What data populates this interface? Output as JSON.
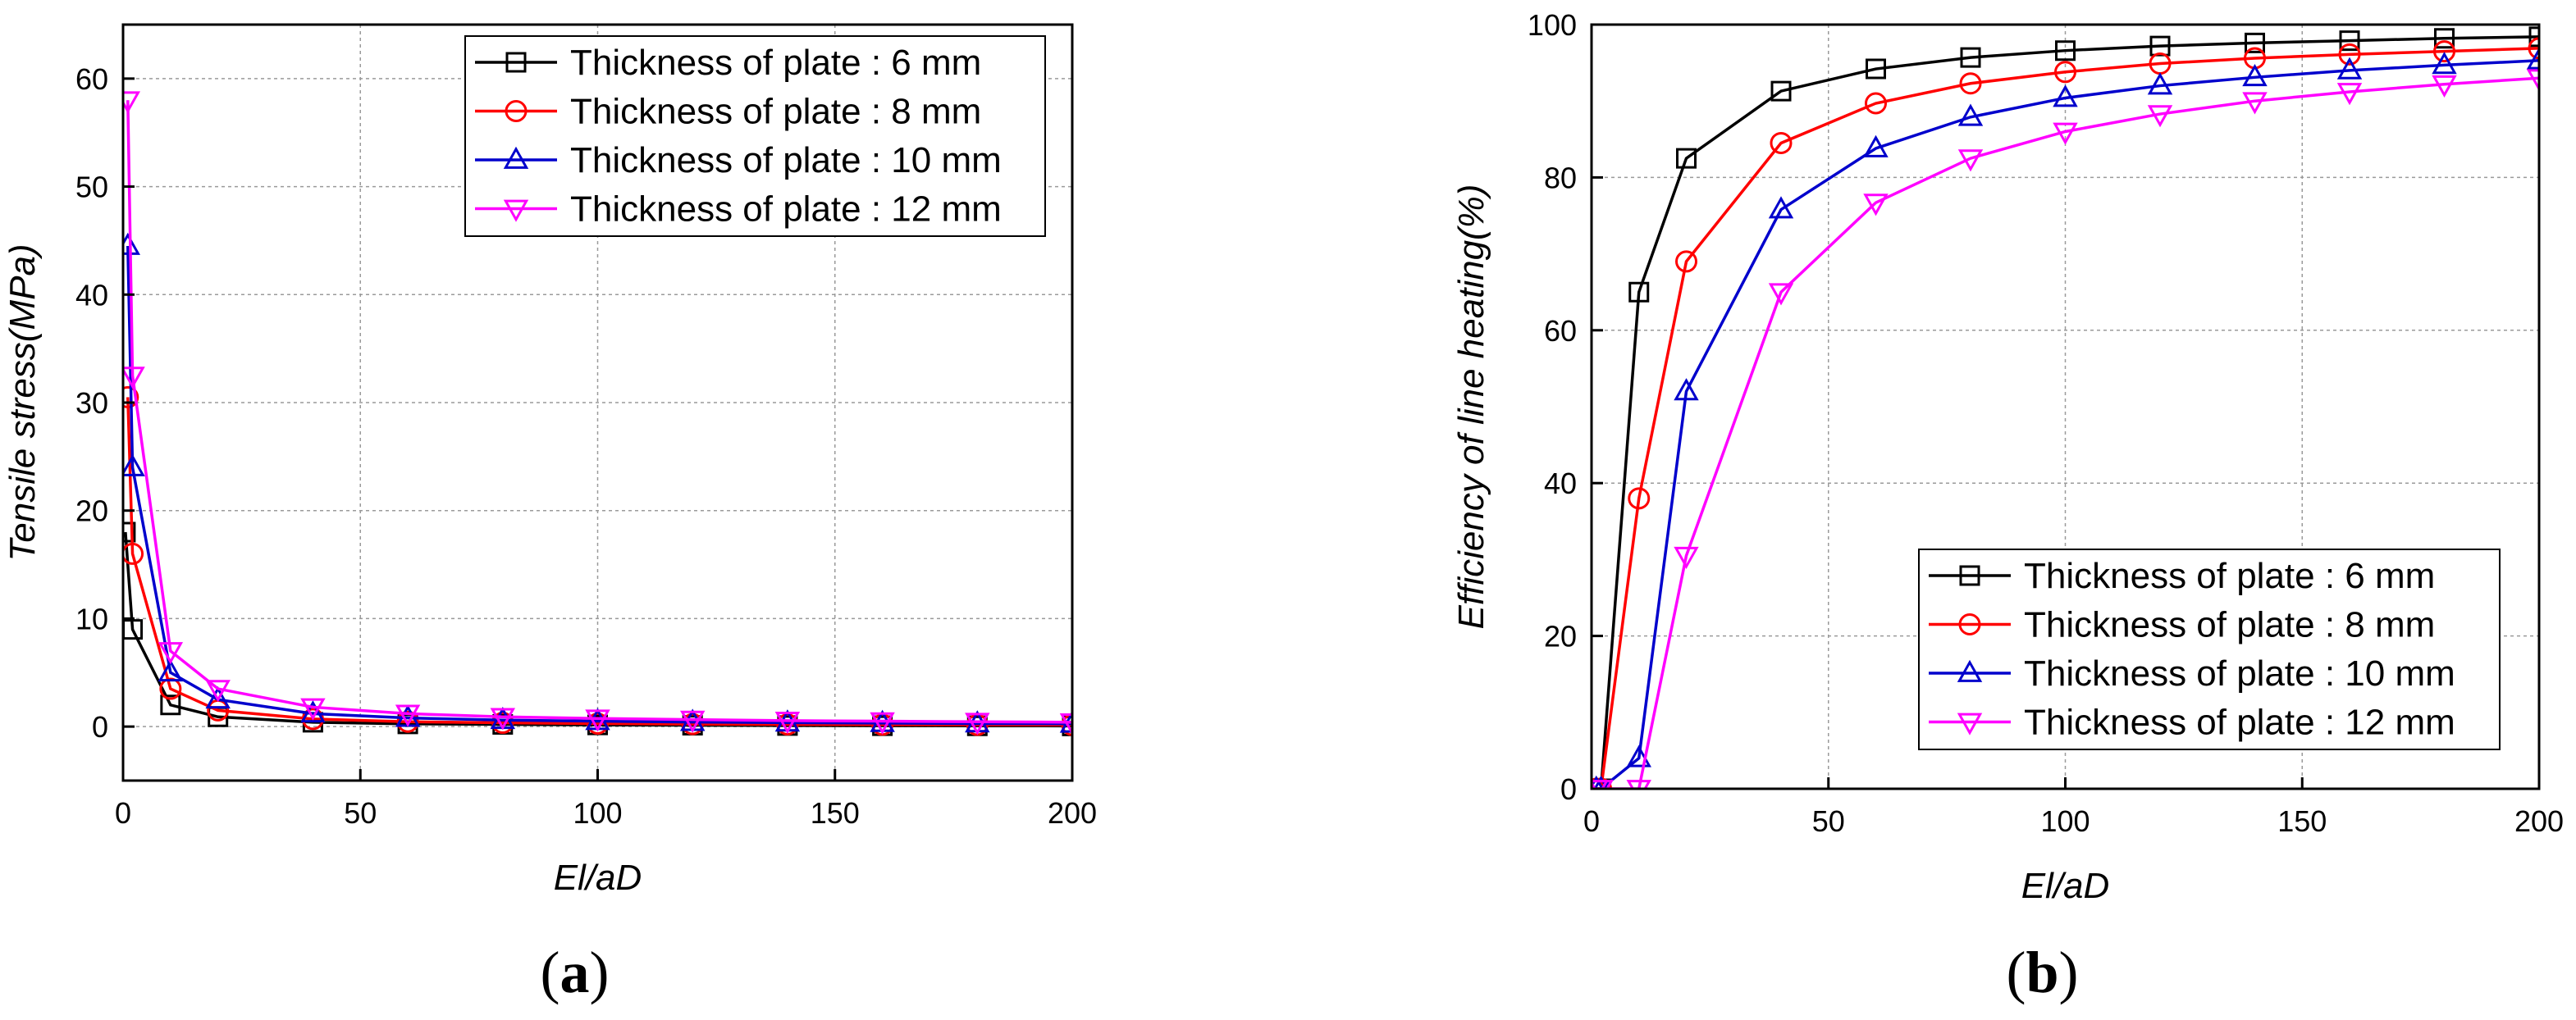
{
  "chart_data": [
    {
      "type": "line",
      "panel_label": "a",
      "title": "",
      "xlabel": "El/aD",
      "ylabel": "Tensile stress(MPa)",
      "xlim": [
        0,
        200
      ],
      "ylim": [
        -5,
        65
      ],
      "xticks": [
        0,
        50,
        100,
        150,
        200
      ],
      "yticks": [
        0,
        10,
        20,
        30,
        40,
        50,
        60
      ],
      "grid": true,
      "legend_position": "top-right",
      "series": [
        {
          "name": "Thickness of plate : 6 mm",
          "color": "#000000",
          "marker": "square",
          "x": [
            0.5,
            2,
            10,
            20,
            40,
            60,
            80,
            100,
            120,
            140,
            160,
            180,
            200
          ],
          "y": [
            18,
            9,
            2,
            0.9,
            0.4,
            0.25,
            0.2,
            0.15,
            0.12,
            0.1,
            0.08,
            0.07,
            0.06
          ]
        },
        {
          "name": "Thickness of plate : 8 mm",
          "color": "#ff0000",
          "marker": "circle",
          "x": [
            1,
            2,
            10,
            20,
            40,
            60,
            80,
            100,
            120,
            140,
            160,
            180,
            200
          ],
          "y": [
            30.5,
            16,
            3.5,
            1.5,
            0.7,
            0.45,
            0.35,
            0.28,
            0.23,
            0.2,
            0.18,
            0.16,
            0.15
          ]
        },
        {
          "name": "Thickness of plate : 10 mm",
          "color": "#0000cc",
          "marker": "triangle-up",
          "x": [
            1,
            2,
            10,
            20,
            40,
            60,
            80,
            100,
            120,
            140,
            160,
            180,
            200
          ],
          "y": [
            44.5,
            24,
            5,
            2.5,
            1.2,
            0.8,
            0.6,
            0.5,
            0.42,
            0.36,
            0.32,
            0.28,
            0.26
          ]
        },
        {
          "name": "Thickness of plate : 12 mm",
          "color": "#ff00ff",
          "marker": "triangle-down",
          "x": [
            1,
            2,
            10,
            20,
            40,
            60,
            80,
            100,
            120,
            140,
            160,
            180,
            200
          ],
          "y": [
            58,
            32.5,
            7,
            3.5,
            1.8,
            1.2,
            0.9,
            0.75,
            0.65,
            0.55,
            0.5,
            0.45,
            0.4
          ]
        }
      ]
    },
    {
      "type": "line",
      "panel_label": "b",
      "title": "",
      "xlabel": "El/aD",
      "ylabel": "Efficiency of line heating(%)",
      "xlim": [
        0,
        200
      ],
      "ylim": [
        0,
        100
      ],
      "xticks": [
        0,
        50,
        100,
        150,
        200
      ],
      "yticks": [
        0,
        20,
        40,
        60,
        80,
        100
      ],
      "grid": true,
      "legend_position": "bottom-right",
      "series": [
        {
          "name": "Thickness of plate : 6 mm",
          "color": "#000000",
          "marker": "square",
          "x": [
            1,
            2,
            10,
            20,
            40,
            60,
            80,
            100,
            120,
            140,
            160,
            180,
            200
          ],
          "y": [
            0,
            0,
            65,
            82.5,
            91.3,
            94.2,
            95.7,
            96.6,
            97.2,
            97.6,
            97.9,
            98.2,
            98.4
          ]
        },
        {
          "name": "Thickness of plate : 8 mm",
          "color": "#ff0000",
          "marker": "circle",
          "x": [
            1,
            2,
            10,
            20,
            40,
            60,
            80,
            100,
            120,
            140,
            160,
            180,
            200
          ],
          "y": [
            0,
            0,
            38,
            69,
            84.5,
            89.7,
            92.3,
            93.8,
            94.9,
            95.6,
            96.1,
            96.5,
            96.9
          ]
        },
        {
          "name": "Thickness of plate : 10 mm",
          "color": "#0000cc",
          "marker": "triangle-up",
          "x": [
            1,
            2,
            10,
            20,
            40,
            60,
            80,
            100,
            120,
            140,
            160,
            180,
            200
          ],
          "y": [
            0,
            0,
            4,
            52,
            75.8,
            83.8,
            87.9,
            90.4,
            92,
            93.1,
            94,
            94.7,
            95.3
          ]
        },
        {
          "name": "Thickness of plate : 12 mm",
          "color": "#ff00ff",
          "marker": "triangle-down",
          "x": [
            1,
            2,
            10,
            20,
            40,
            60,
            80,
            100,
            120,
            140,
            160,
            180,
            200
          ],
          "y": [
            0,
            0,
            0,
            30.5,
            65,
            76.7,
            82.5,
            86,
            88.3,
            90,
            91.2,
            92.2,
            93
          ]
        }
      ]
    }
  ]
}
